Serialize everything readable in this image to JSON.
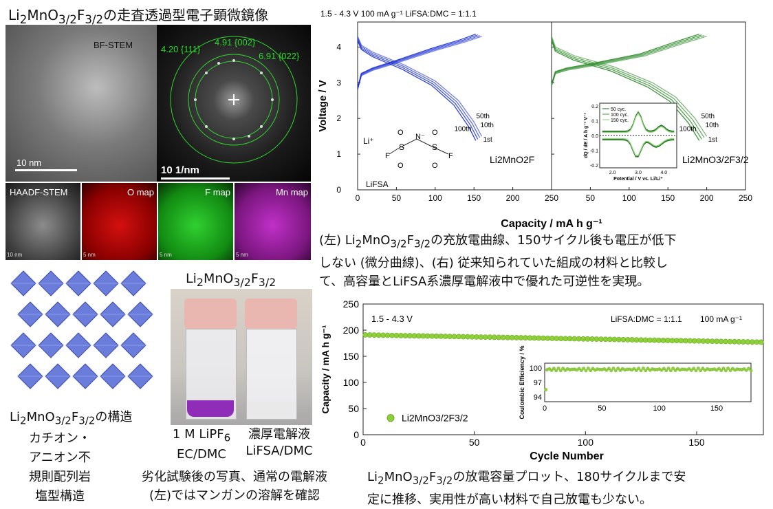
{
  "stem": {
    "title_html": "Li<sub>2</sub>MnO<sub>3/2</sub>F<sub>3/2</sub>の走査透過型電子顕微鏡像",
    "bf_label": "BF-STEM",
    "scalebar_label": "10 nm",
    "fft_scalebar_label": "10 1/nm",
    "fft_labels": [
      "4.20 {111}",
      "4.91 {002}",
      "6.91 {022}"
    ],
    "maps": [
      "HAADF-STEM",
      "O map",
      "F map",
      "Mn map"
    ],
    "map_scale_labels": [
      "10 nm",
      "5 nm",
      "5 nm",
      "5 nm"
    ]
  },
  "structure": {
    "caption_html": "Li<sub>2</sub>MnO<sub>3/2</sub>F<sub>3/2</sub>の構造",
    "desc": [
      "カチオン・",
      "アニオン不",
      "規則配列岩",
      "塩型構造"
    ]
  },
  "photo": {
    "title_html": "Li<sub>2</sub>MnO<sub>3/2</sub>F<sub>3/2</sub>",
    "left_label_html": "1 M LiPF<sub>6</sub><br>EC/DMC",
    "right_label_html": "濃厚電解液<br>LiFSA/DMC",
    "caption": [
      "劣化試験後の写真、通常の電解液",
      "(左)ではマンガンの溶解を確認"
    ]
  },
  "chart_data": [
    {
      "type": "line",
      "title": "1.5 - 4.3 V 100 mA g⁻¹ LiFSA:DMC = 1:1.1",
      "xlabel": "Capacity / mA h g⁻¹",
      "ylabel": "Voltage / V",
      "panels": [
        {
          "name": "Li2MnO2F",
          "xlim": [
            0,
            250
          ],
          "ylim": [
            0,
            4.7
          ],
          "color": "#1a2fd0",
          "cycle_labels": [
            "50th",
            "10th",
            "100th",
            "1st"
          ],
          "charge": {
            "x": [
              0,
              5,
              20,
              50,
              100,
              140,
              160
            ],
            "y": [
              2.8,
              3.2,
              3.35,
              3.55,
              3.9,
              4.15,
              4.3
            ]
          },
          "discharge": {
            "x": [
              0,
              5,
              20,
              60,
              100,
              130,
              150,
              160
            ],
            "y": [
              4.3,
              4.05,
              3.85,
              3.5,
              3.05,
              2.5,
              1.9,
              1.5
            ]
          }
        },
        {
          "name": "Li2MnO3/2F3/2",
          "xlim": [
            0,
            250
          ],
          "ylim": [
            0,
            4.7
          ],
          "color": "#2e8b2a",
          "cycle_labels": [
            "50th",
            "10th",
            "100th",
            "1st"
          ],
          "charge": {
            "x": [
              0,
              5,
              20,
              60,
              120,
              170,
              200
            ],
            "y": [
              2.9,
              3.25,
              3.35,
              3.5,
              3.75,
              4.1,
              4.3
            ]
          },
          "discharge": {
            "x": [
              0,
              5,
              30,
              80,
              130,
              160,
              185,
              200
            ],
            "y": [
              4.3,
              4.0,
              3.75,
              3.45,
              3.0,
              2.6,
              2.0,
              1.5
            ]
          },
          "inset": {
            "xlabel": "Potential / V vs. Li/Li⁺",
            "ylabel": "dQ / dE / A h g⁻¹ V⁻¹",
            "xlim": [
              1.5,
              4.5
            ],
            "ylim": [
              -0.2,
              0.2
            ],
            "xticks": [
              "2.0",
              "3.0",
              "4.0"
            ],
            "yticks": [
              "-0.2",
              "-0.1",
              "0.0",
              "0.1",
              "0.2"
            ],
            "series": [
              "50 cyc.",
              "100 cyc.",
              "150 cyc."
            ]
          }
        }
      ],
      "xticks": [
        "0",
        "50",
        "100",
        "150",
        "200",
        "250"
      ],
      "yticks": [
        "0",
        "1",
        "2",
        "3",
        "4"
      ],
      "structure_labels": [
        "Li⁺",
        "LiFSA",
        "N⁻",
        "O",
        "S",
        "F"
      ]
    },
    {
      "type": "scatter",
      "xlabel": "Cycle Number",
      "ylabel": "Capacity / mA h g⁻¹",
      "xlim": [
        0,
        180
      ],
      "ylim": [
        0,
        250
      ],
      "xticks": [
        "0",
        "50",
        "100",
        "150"
      ],
      "yticks": [
        "0",
        "50",
        "100",
        "150",
        "200",
        "250"
      ],
      "annotations": [
        "1.5 - 4.3 V",
        "LiFSA:DMC = 1:1.1",
        "100 mA g⁻¹"
      ],
      "legend": "Li2MnO3/2F3/2",
      "capacity_start": 191,
      "capacity_end": 177,
      "inset": {
        "ylabel": "Coulombic Efficiency / %",
        "xlim": [
          0,
          180
        ],
        "ylim": [
          93,
          101
        ],
        "xticks": [
          "0",
          "50",
          "100",
          "150"
        ],
        "yticks": [
          "94",
          "97",
          "100"
        ],
        "first_value": 95.5,
        "steady_value": 100
      }
    }
  ],
  "captions": {
    "curves": [
      "(左) Li<sub>2</sub>MnO<sub>3/2</sub>F<sub>3/2</sub>の充放電曲線、150サイクル後も電圧が低下",
      "しない (微分曲線)、(右) 従来知られていた組成の材料と比較し",
      "て、高容量とLiFSA系濃厚電解液中で優れた可逆性を実現。"
    ],
    "cycles": [
      "Li<sub>2</sub>MnO<sub>3/2</sub>F<sub>3/2</sub>の放電容量プロット、180サイクルまで安",
      "定に推移、実用性が高い材料で自己放電も少ない。"
    ]
  }
}
